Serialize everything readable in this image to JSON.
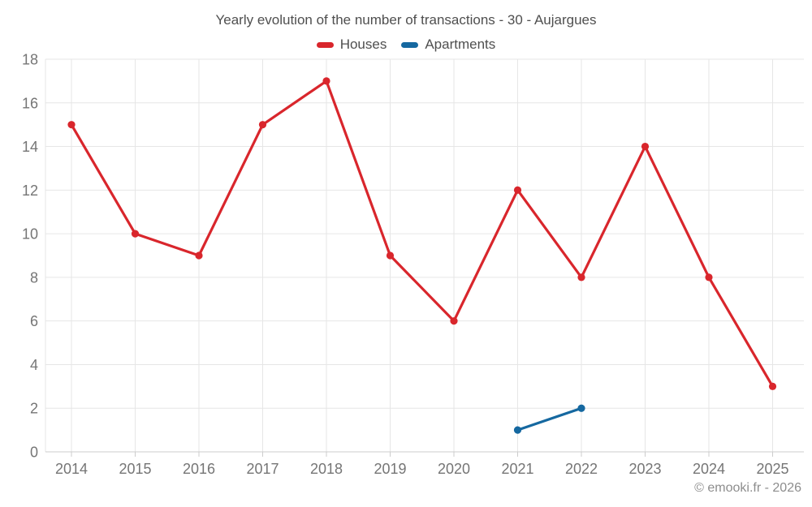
{
  "chart_data": {
    "type": "line",
    "title": "Yearly evolution of the number of transactions - 30 - Aujargues",
    "categories": [
      "2014",
      "2015",
      "2016",
      "2017",
      "2018",
      "2019",
      "2020",
      "2021",
      "2022",
      "2023",
      "2024",
      "2025"
    ],
    "series": [
      {
        "name": "Houses",
        "color": "#d9262c",
        "values": [
          15,
          10,
          9,
          15,
          17,
          9,
          6,
          12,
          8,
          14,
          8,
          3
        ]
      },
      {
        "name": "Apartments",
        "color": "#1568a0",
        "values": [
          null,
          null,
          null,
          null,
          null,
          null,
          null,
          1,
          2,
          null,
          null,
          null
        ]
      }
    ],
    "xlabel": "",
    "ylabel": "",
    "ylim": [
      0,
      18
    ],
    "ytick_step": 2,
    "y_tick_labels": [
      "0",
      "2",
      "4",
      "6",
      "8",
      "10",
      "12",
      "14",
      "16",
      "18"
    ],
    "grid": true,
    "legend_position": "top"
  },
  "colors": {
    "background": "#ffffff",
    "gridline": "#e6e6e6",
    "axis_line": "#cccccc",
    "tick_label": "#757575",
    "title_text": "#4f4f4f",
    "legend_text": "#4f4f4f",
    "footer_text": "#8d8d8d"
  },
  "footer": {
    "credit": "© emooki.fr - 2026"
  }
}
